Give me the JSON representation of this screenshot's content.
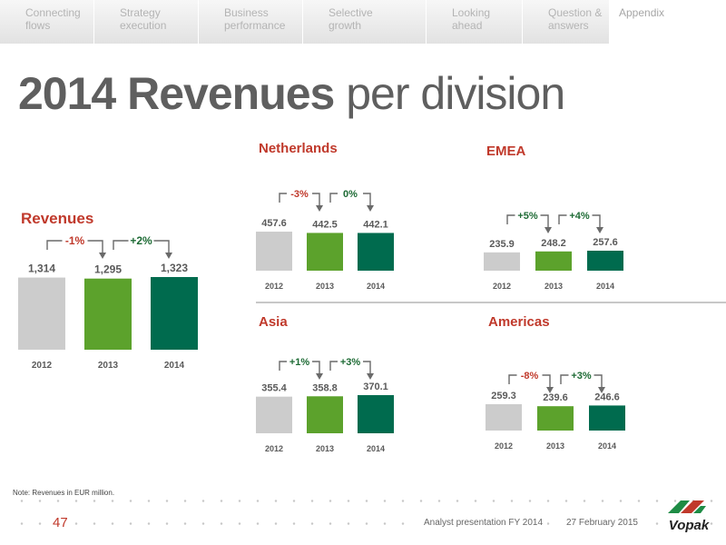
{
  "nav": {
    "tabs": [
      {
        "label": "Connecting\nflows",
        "active": false
      },
      {
        "label": "Strategy\nexecution",
        "active": false
      },
      {
        "label": "Business\nperformance",
        "active": false
      },
      {
        "label": "Selective\ngrowth",
        "active": false
      },
      {
        "label": "Looking\nahead",
        "active": false
      },
      {
        "label": "Question &\nanswers",
        "active": false
      },
      {
        "label": "Appendix",
        "active": true
      }
    ]
  },
  "title": {
    "bold": "2014 Revenues",
    "normal": " per division"
  },
  "colors": {
    "bar_2012": "#cccccc",
    "bar_2013": "#5ca22c",
    "bar_2014": "#006b4e",
    "change_negative": "#c0392b",
    "change_positive": "#1e6b35",
    "heading": "#c0392b",
    "value": "#5a5a5a"
  },
  "chart_data": [
    {
      "type": "bar",
      "title": "Revenues",
      "categories": [
        "2012",
        "2013",
        "2014"
      ],
      "values": [
        1314,
        1295,
        1323
      ],
      "value_labels": [
        "1,314",
        "1,295",
        "1,323"
      ],
      "changes": [
        "-1%",
        "+2%"
      ]
    },
    {
      "type": "bar",
      "title": "Netherlands",
      "categories": [
        "2012",
        "2013",
        "2014"
      ],
      "values": [
        457.6,
        442.5,
        442.1
      ],
      "value_labels": [
        "457.6",
        "442.5",
        "442.1"
      ],
      "changes": [
        "-3%",
        "0%"
      ]
    },
    {
      "type": "bar",
      "title": "EMEA",
      "categories": [
        "2012",
        "2013",
        "2014"
      ],
      "values": [
        235.9,
        248.2,
        257.6
      ],
      "value_labels": [
        "235.9",
        "248.2",
        "257.6"
      ],
      "changes": [
        "+5%",
        "+4%"
      ]
    },
    {
      "type": "bar",
      "title": "Asia",
      "categories": [
        "2012",
        "2013",
        "2014"
      ],
      "values": [
        355.4,
        358.8,
        370.1
      ],
      "value_labels": [
        "355.4",
        "358.8",
        "370.1"
      ],
      "changes": [
        "+1%",
        "+3%"
      ]
    },
    {
      "type": "bar",
      "title": "Americas",
      "categories": [
        "2012",
        "2013",
        "2014"
      ],
      "values": [
        259.3,
        239.6,
        246.6
      ],
      "value_labels": [
        "259.3",
        "239.6",
        "246.6"
      ],
      "changes": [
        "-8%",
        "+3%"
      ]
    }
  ],
  "footnote": "Note: Revenues in EUR million.",
  "footer": {
    "page_number": "47",
    "presentation": "Analyst presentation FY 2014",
    "date": "27 February 2015",
    "logo_text": "Vopak"
  }
}
